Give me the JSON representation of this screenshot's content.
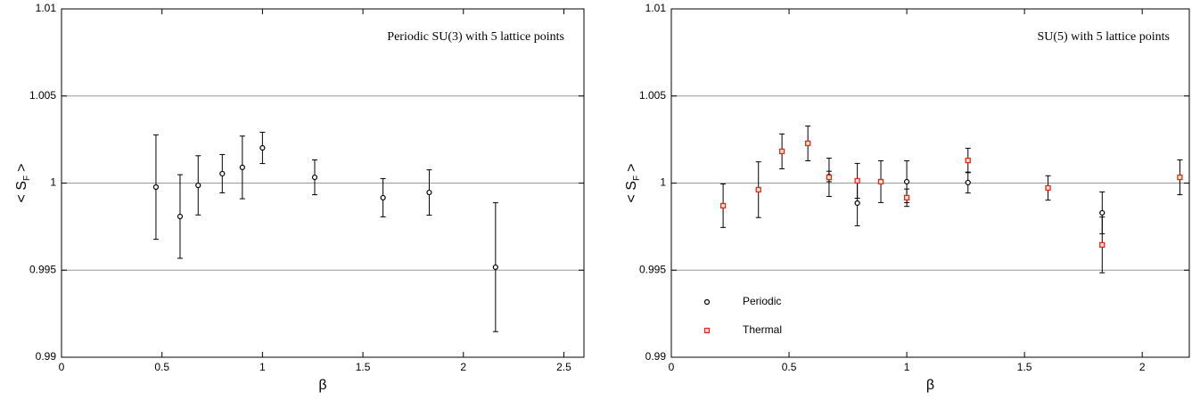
{
  "chart_data": [
    {
      "type": "scatter",
      "title": "Periodic SU(3) with 5 lattice points",
      "xlabel": "β",
      "ylabel": [
        "< S",
        "F",
        ">"
      ],
      "xlim": [
        0,
        2.6
      ],
      "ylim": [
        0.99,
        1.01
      ],
      "xticks": [
        0,
        0.5,
        1,
        1.5,
        2,
        2.5
      ],
      "yticks": [
        0.99,
        0.995,
        1,
        1.005,
        1.01
      ],
      "grid": true,
      "series": [
        {
          "color": "#000000",
          "marker": "circle",
          "x": [
            0.47,
            0.59,
            0.68,
            0.8,
            0.9,
            1.0,
            1.26,
            1.6,
            1.83,
            2.16
          ],
          "values": [
            0.99977,
            0.99808,
            0.99987,
            1.00054,
            1.0009,
            1.00202,
            1.00033,
            0.99916,
            0.99946,
            0.99517
          ],
          "errors": [
            0.003,
            0.0024,
            0.0017,
            0.0011,
            0.0018,
            0.0009,
            0.001,
            0.0011,
            0.0013,
            0.0037
          ]
        }
      ]
    },
    {
      "type": "scatter",
      "title": "SU(5) with 5 lattice points",
      "xlabel": "β",
      "ylabel": [
        "< S",
        "F",
        ">"
      ],
      "xlim": [
        0,
        2.2
      ],
      "ylim": [
        0.99,
        1.01
      ],
      "xticks": [
        0,
        0.5,
        1,
        1.5,
        2
      ],
      "yticks": [
        0.99,
        0.995,
        1,
        1.005,
        1.01
      ],
      "grid": true,
      "legend": "lower left",
      "series": [
        {
          "name": "Periodic",
          "color": "#000000",
          "marker": "circle",
          "x": [
            0.67,
            0.79,
            1.0,
            1.26,
            1.83
          ],
          "values": [
            1.00038,
            0.99885,
            1.00008,
            1.00003,
            0.99829
          ],
          "errors": [
            0.0003,
            0.0013,
            0.0012,
            0.0006,
            0.0012
          ]
        },
        {
          "name": "Thermal",
          "color": "#e8261a",
          "marker": "square",
          "x": [
            0.22,
            0.37,
            0.47,
            0.58,
            0.67,
            0.79,
            0.89,
            1.0,
            1.26,
            1.6,
            1.83,
            2.16
          ],
          "values": [
            0.9987,
            0.99962,
            1.00182,
            1.00228,
            1.00033,
            1.00013,
            1.00008,
            0.99916,
            1.0013,
            0.99972,
            0.99645,
            1.00033
          ],
          "errors": [
            0.00125,
            0.0016,
            0.001,
            0.001,
            0.0011,
            0.001,
            0.0012,
            0.0005,
            0.0007,
            0.0007,
            0.0016,
            0.001
          ]
        }
      ]
    }
  ]
}
